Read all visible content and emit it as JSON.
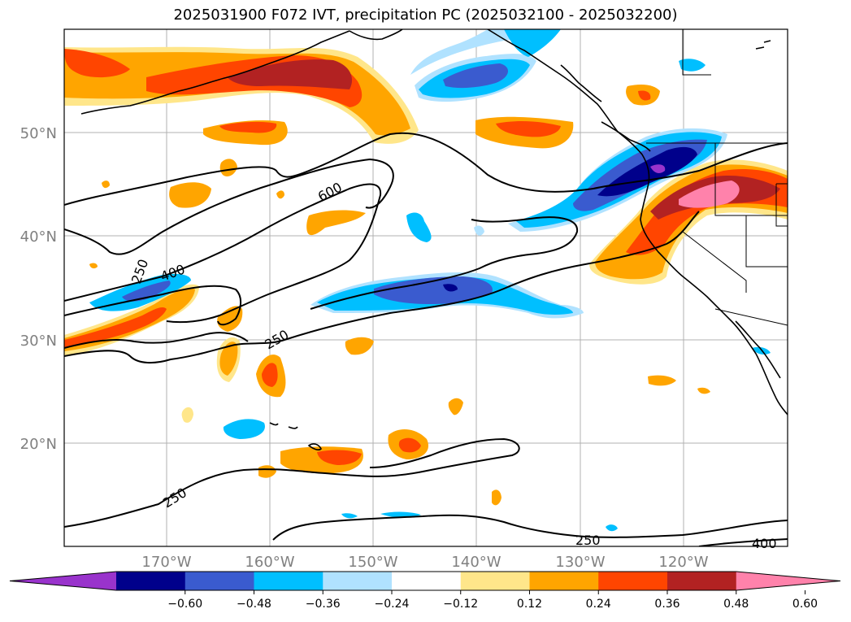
{
  "title": "2025031900 F072 IVT, precipitation PC (2025032100 - 2025032200)",
  "map": {
    "lat_labels": [
      "50°N",
      "40°N",
      "30°N",
      "20°N"
    ],
    "lon_labels": [
      "170°W",
      "160°W",
      "150°W",
      "140°W",
      "130°W",
      "120°W"
    ],
    "contour_labels": [
      "600",
      "400",
      "250",
      "250",
      "250",
      "250",
      "400"
    ],
    "colors": {
      "grid": "#b0b0b0",
      "coast": "#000000",
      "contour": "#000000"
    }
  },
  "colorbar": {
    "colors": [
      "#9933cc",
      "#00008b",
      "#3a5bcf",
      "#00bfff",
      "#b0e2ff",
      "#ffffff",
      "#ffe68a",
      "#ffa500",
      "#ff4500",
      "#b22222",
      "#ff82ab"
    ],
    "tick_labels": [
      "−0.60",
      "−0.48",
      "−0.36",
      "−0.24",
      "−0.12",
      "0.12",
      "0.24",
      "0.36",
      "0.48",
      "0.60"
    ]
  }
}
